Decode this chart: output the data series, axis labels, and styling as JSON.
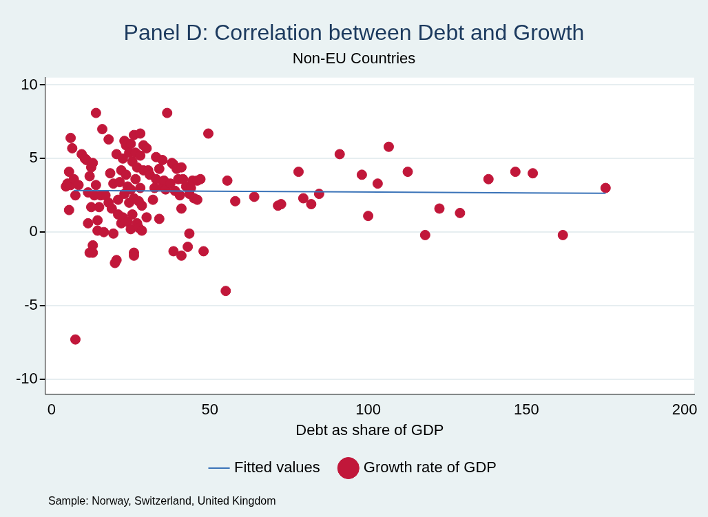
{
  "chart_data": {
    "type": "scatter",
    "title": "Panel D: Correlation between Debt and Growth",
    "subtitle": "Non-EU Countries",
    "xlabel": "Debt as share of GDP",
    "annotations": [
      "Sample: Norway, Switzerland, United Kingdom"
    ],
    "xlim": [
      -2,
      203
    ],
    "xticks": [
      0,
      50,
      100,
      150,
      200
    ],
    "ylim": [
      -11,
      10.5
    ],
    "yticks": [
      -10,
      -5,
      0,
      5,
      10
    ],
    "grid": "y",
    "legend": "bottom",
    "series": [
      {
        "name": "Fitted values",
        "type": "line",
        "marker": "none",
        "color": "#3a73b8",
        "x": [
          7,
          175
        ],
        "values": [
          2.83,
          2.64
        ]
      },
      {
        "name": "Growth rate of GDP",
        "marker": "circle",
        "color": "#c1173a",
        "x": [
          4.5,
          5,
          5.5,
          5.5,
          6,
          6.5,
          6,
          7,
          7.5,
          7.5,
          8.5,
          9.5,
          10.5,
          11,
          11.5,
          11.5,
          12,
          12,
          12.5,
          12.5,
          13,
          13,
          13,
          13.5,
          14,
          14,
          14.5,
          14.5,
          15,
          15.5,
          16,
          16.5,
          17,
          18,
          18,
          18.5,
          19,
          19.5,
          19.5,
          20,
          20.5,
          20.5,
          21,
          21,
          21.5,
          22,
          22,
          22.5,
          22.5,
          23,
          23,
          23.5,
          23.5,
          24,
          24,
          24.5,
          24.5,
          25,
          25,
          25,
          25.5,
          25.5,
          26,
          26,
          26,
          26,
          26.5,
          26.5,
          27,
          27,
          27.5,
          27.5,
          28,
          28,
          28,
          28.5,
          28.5,
          29,
          29,
          30,
          30,
          30.5,
          31,
          32,
          32.5,
          33,
          33,
          34,
          34,
          35,
          35,
          35.5,
          36,
          36.5,
          37.5,
          38,
          38.5,
          38.5,
          39,
          39.5,
          40,
          40.5,
          41,
          41,
          41,
          41.5,
          42.5,
          43,
          43.5,
          43.5,
          44,
          44.5,
          45,
          46,
          46,
          47,
          48,
          49.5,
          55,
          55.5,
          58,
          64,
          71.5,
          72.5,
          78,
          79.5,
          82,
          84.5,
          91,
          98,
          100,
          103,
          106.5,
          112.5,
          118,
          122.5,
          129,
          138,
          146.5,
          152,
          161.5,
          175
        ],
        "values": [
          3.1,
          3.3,
          4.1,
          1.5,
          6.4,
          5.7,
          3.2,
          3.6,
          2.5,
          -7.3,
          3.2,
          5.3,
          5,
          4.9,
          0.6,
          2.7,
          -1.4,
          3.8,
          4.4,
          1.7,
          -0.9,
          -1.4,
          4.7,
          2.5,
          8.1,
          3.2,
          0.1,
          0.8,
          1.7,
          2.5,
          7,
          0,
          2.5,
          6.3,
          2,
          4,
          1.6,
          -0.1,
          3.3,
          -2.1,
          -1.9,
          5.3,
          1.2,
          2.2,
          3.4,
          0.6,
          4.2,
          5,
          1,
          6.2,
          2.6,
          3.9,
          5.9,
          0.7,
          3.1,
          2,
          5.4,
          6,
          0.2,
          2.9,
          1.2,
          4.8,
          6.6,
          -1.4,
          -1.6,
          2.3,
          5.4,
          3.6,
          0.6,
          4.4,
          0.3,
          2.1,
          6.7,
          5.2,
          3,
          0.1,
          1.8,
          5.9,
          4.2,
          1,
          5.7,
          4.2,
          3.9,
          2.2,
          3,
          3.6,
          5.1,
          0.9,
          4.3,
          4.9,
          3.1,
          3.5,
          2.9,
          8.1,
          3.3,
          4.7,
          -1.3,
          4.6,
          2.8,
          4.3,
          3.6,
          2.5,
          1.6,
          -1.6,
          4.4,
          3.6,
          3.1,
          -1,
          -0.1,
          2.6,
          3,
          3.5,
          2.3,
          3.5,
          2.2,
          3.6,
          -1.3,
          6.7,
          -4,
          3.5,
          2.1,
          2.4,
          1.8,
          1.9,
          4.1,
          2.3,
          1.9,
          2.6,
          5.3,
          3.9,
          1.1,
          3.3,
          5.8,
          4.1,
          -0.2,
          1.6,
          1.3,
          3.6,
          4.1,
          4,
          -0.2,
          3
        ]
      }
    ]
  }
}
